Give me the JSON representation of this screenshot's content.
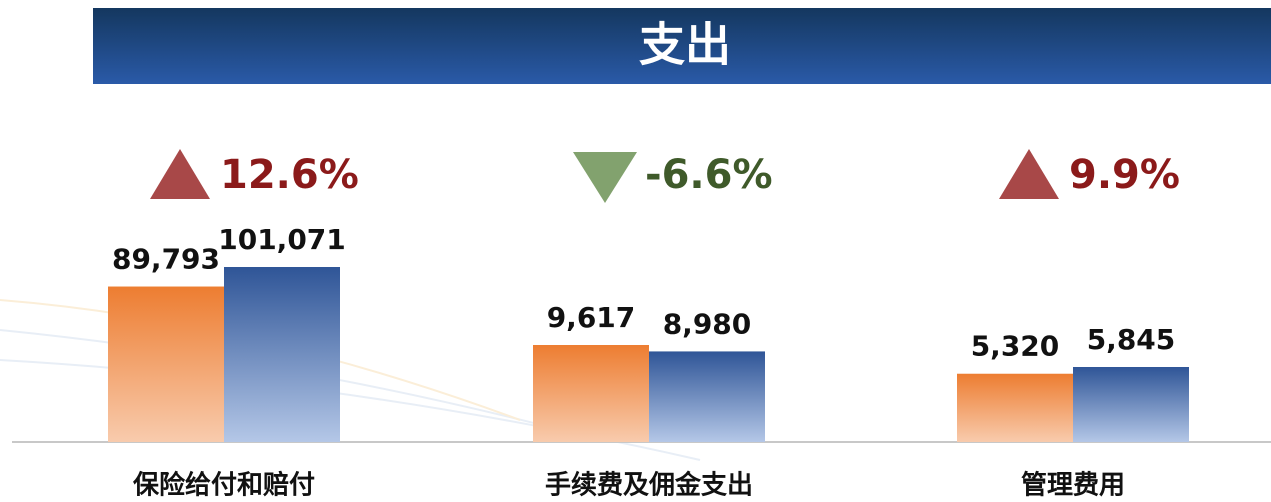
{
  "chart_data": {
    "type": "bar",
    "title": "支出",
    "categories": [
      "保险给付和赔付",
      "手续费及佣金支出",
      "管理费用"
    ],
    "series": [
      {
        "color": "#ed7d31",
        "values": [
          89793,
          9617,
          5320
        ],
        "value_labels": [
          "89,793",
          "9,617",
          "5,320"
        ]
      },
      {
        "color": "#2f5597",
        "values": [
          101071,
          8980,
          5845
        ],
        "value_labels": [
          "101,071",
          "8,980",
          "5,845"
        ]
      }
    ],
    "changes": {
      "values": [
        12.6,
        -6.6,
        9.9
      ],
      "value_labels": [
        "12.6%",
        "-6.6%",
        "9.9%"
      ]
    }
  }
}
